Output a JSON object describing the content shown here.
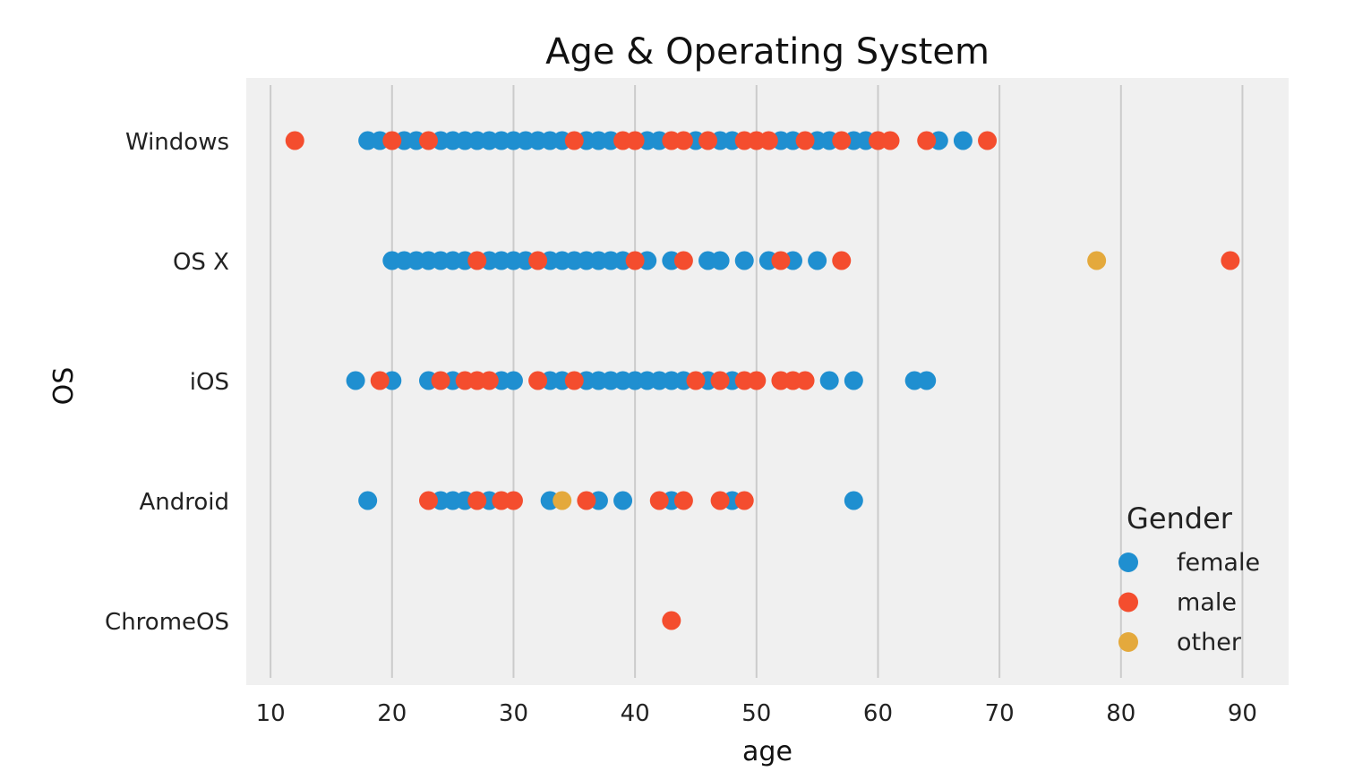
{
  "chart_data": {
    "type": "scatter",
    "title": "Age & Operating System",
    "xlabel": "age",
    "ylabel": "OS",
    "xlim": [
      8,
      93.8
    ],
    "x_ticks": [
      10,
      20,
      30,
      40,
      50,
      60,
      70,
      80,
      90
    ],
    "categories": [
      "Windows",
      "OS X",
      "iOS",
      "Android",
      "ChromeOS"
    ],
    "grid": "vertical",
    "legend": {
      "title": "Gender",
      "position": "bottom-right"
    },
    "colors": {
      "background": "#f0f0f0",
      "grid": "#cbcbcb",
      "female": "#1f8fd0",
      "male": "#f44d2e",
      "other": "#e4a93c"
    },
    "series": [
      {
        "name": "female",
        "color": "#1f8fd0",
        "points": [
          {
            "x": 18,
            "y": "Windows"
          },
          {
            "x": 19,
            "y": "Windows"
          },
          {
            "x": 21,
            "y": "Windows"
          },
          {
            "x": 22,
            "y": "Windows"
          },
          {
            "x": 24,
            "y": "Windows"
          },
          {
            "x": 25,
            "y": "Windows"
          },
          {
            "x": 26,
            "y": "Windows"
          },
          {
            "x": 27,
            "y": "Windows"
          },
          {
            "x": 28,
            "y": "Windows"
          },
          {
            "x": 29,
            "y": "Windows"
          },
          {
            "x": 30,
            "y": "Windows"
          },
          {
            "x": 31,
            "y": "Windows"
          },
          {
            "x": 32,
            "y": "Windows"
          },
          {
            "x": 33,
            "y": "Windows"
          },
          {
            "x": 34,
            "y": "Windows"
          },
          {
            "x": 36,
            "y": "Windows"
          },
          {
            "x": 37,
            "y": "Windows"
          },
          {
            "x": 38,
            "y": "Windows"
          },
          {
            "x": 41,
            "y": "Windows"
          },
          {
            "x": 42,
            "y": "Windows"
          },
          {
            "x": 45,
            "y": "Windows"
          },
          {
            "x": 47,
            "y": "Windows"
          },
          {
            "x": 48,
            "y": "Windows"
          },
          {
            "x": 52,
            "y": "Windows"
          },
          {
            "x": 53,
            "y": "Windows"
          },
          {
            "x": 55,
            "y": "Windows"
          },
          {
            "x": 56,
            "y": "Windows"
          },
          {
            "x": 58,
            "y": "Windows"
          },
          {
            "x": 59,
            "y": "Windows"
          },
          {
            "x": 65,
            "y": "Windows"
          },
          {
            "x": 67,
            "y": "Windows"
          },
          {
            "x": 20,
            "y": "OS X"
          },
          {
            "x": 21,
            "y": "OS X"
          },
          {
            "x": 22,
            "y": "OS X"
          },
          {
            "x": 23,
            "y": "OS X"
          },
          {
            "x": 24,
            "y": "OS X"
          },
          {
            "x": 25,
            "y": "OS X"
          },
          {
            "x": 26,
            "y": "OS X"
          },
          {
            "x": 28,
            "y": "OS X"
          },
          {
            "x": 29,
            "y": "OS X"
          },
          {
            "x": 30,
            "y": "OS X"
          },
          {
            "x": 31,
            "y": "OS X"
          },
          {
            "x": 33,
            "y": "OS X"
          },
          {
            "x": 34,
            "y": "OS X"
          },
          {
            "x": 35,
            "y": "OS X"
          },
          {
            "x": 36,
            "y": "OS X"
          },
          {
            "x": 37,
            "y": "OS X"
          },
          {
            "x": 38,
            "y": "OS X"
          },
          {
            "x": 39,
            "y": "OS X"
          },
          {
            "x": 41,
            "y": "OS X"
          },
          {
            "x": 43,
            "y": "OS X"
          },
          {
            "x": 46,
            "y": "OS X"
          },
          {
            "x": 47,
            "y": "OS X"
          },
          {
            "x": 49,
            "y": "OS X"
          },
          {
            "x": 51,
            "y": "OS X"
          },
          {
            "x": 53,
            "y": "OS X"
          },
          {
            "x": 55,
            "y": "OS X"
          },
          {
            "x": 17,
            "y": "iOS"
          },
          {
            "x": 20,
            "y": "iOS"
          },
          {
            "x": 23,
            "y": "iOS"
          },
          {
            "x": 25,
            "y": "iOS"
          },
          {
            "x": 29,
            "y": "iOS"
          },
          {
            "x": 30,
            "y": "iOS"
          },
          {
            "x": 33,
            "y": "iOS"
          },
          {
            "x": 34,
            "y": "iOS"
          },
          {
            "x": 36,
            "y": "iOS"
          },
          {
            "x": 37,
            "y": "iOS"
          },
          {
            "x": 38,
            "y": "iOS"
          },
          {
            "x": 39,
            "y": "iOS"
          },
          {
            "x": 40,
            "y": "iOS"
          },
          {
            "x": 41,
            "y": "iOS"
          },
          {
            "x": 42,
            "y": "iOS"
          },
          {
            "x": 43,
            "y": "iOS"
          },
          {
            "x": 44,
            "y": "iOS"
          },
          {
            "x": 46,
            "y": "iOS"
          },
          {
            "x": 48,
            "y": "iOS"
          },
          {
            "x": 56,
            "y": "iOS"
          },
          {
            "x": 58,
            "y": "iOS"
          },
          {
            "x": 63,
            "y": "iOS"
          },
          {
            "x": 64,
            "y": "iOS"
          },
          {
            "x": 18,
            "y": "Android"
          },
          {
            "x": 24,
            "y": "Android"
          },
          {
            "x": 25,
            "y": "Android"
          },
          {
            "x": 26,
            "y": "Android"
          },
          {
            "x": 28,
            "y": "Android"
          },
          {
            "x": 33,
            "y": "Android"
          },
          {
            "x": 37,
            "y": "Android"
          },
          {
            "x": 39,
            "y": "Android"
          },
          {
            "x": 43,
            "y": "Android"
          },
          {
            "x": 48,
            "y": "Android"
          },
          {
            "x": 58,
            "y": "Android"
          }
        ]
      },
      {
        "name": "male",
        "color": "#f44d2e",
        "points": [
          {
            "x": 12,
            "y": "Windows"
          },
          {
            "x": 20,
            "y": "Windows"
          },
          {
            "x": 23,
            "y": "Windows"
          },
          {
            "x": 35,
            "y": "Windows"
          },
          {
            "x": 39,
            "y": "Windows"
          },
          {
            "x": 40,
            "y": "Windows"
          },
          {
            "x": 43,
            "y": "Windows"
          },
          {
            "x": 44,
            "y": "Windows"
          },
          {
            "x": 46,
            "y": "Windows"
          },
          {
            "x": 49,
            "y": "Windows"
          },
          {
            "x": 50,
            "y": "Windows"
          },
          {
            "x": 51,
            "y": "Windows"
          },
          {
            "x": 54,
            "y": "Windows"
          },
          {
            "x": 57,
            "y": "Windows"
          },
          {
            "x": 60,
            "y": "Windows"
          },
          {
            "x": 61,
            "y": "Windows"
          },
          {
            "x": 64,
            "y": "Windows"
          },
          {
            "x": 69,
            "y": "Windows"
          },
          {
            "x": 27,
            "y": "OS X"
          },
          {
            "x": 32,
            "y": "OS X"
          },
          {
            "x": 40,
            "y": "OS X"
          },
          {
            "x": 44,
            "y": "OS X"
          },
          {
            "x": 52,
            "y": "OS X"
          },
          {
            "x": 57,
            "y": "OS X"
          },
          {
            "x": 89,
            "y": "OS X"
          },
          {
            "x": 19,
            "y": "iOS"
          },
          {
            "x": 24,
            "y": "iOS"
          },
          {
            "x": 26,
            "y": "iOS"
          },
          {
            "x": 27,
            "y": "iOS"
          },
          {
            "x": 28,
            "y": "iOS"
          },
          {
            "x": 32,
            "y": "iOS"
          },
          {
            "x": 35,
            "y": "iOS"
          },
          {
            "x": 45,
            "y": "iOS"
          },
          {
            "x": 47,
            "y": "iOS"
          },
          {
            "x": 49,
            "y": "iOS"
          },
          {
            "x": 50,
            "y": "iOS"
          },
          {
            "x": 52,
            "y": "iOS"
          },
          {
            "x": 53,
            "y": "iOS"
          },
          {
            "x": 54,
            "y": "iOS"
          },
          {
            "x": 23,
            "y": "Android"
          },
          {
            "x": 27,
            "y": "Android"
          },
          {
            "x": 29,
            "y": "Android"
          },
          {
            "x": 30,
            "y": "Android"
          },
          {
            "x": 36,
            "y": "Android"
          },
          {
            "x": 42,
            "y": "Android"
          },
          {
            "x": 44,
            "y": "Android"
          },
          {
            "x": 47,
            "y": "Android"
          },
          {
            "x": 49,
            "y": "Android"
          },
          {
            "x": 43,
            "y": "ChromeOS"
          }
        ]
      },
      {
        "name": "other",
        "color": "#e4a93c",
        "points": [
          {
            "x": 78,
            "y": "OS X"
          },
          {
            "x": 34,
            "y": "Android"
          }
        ]
      }
    ]
  }
}
